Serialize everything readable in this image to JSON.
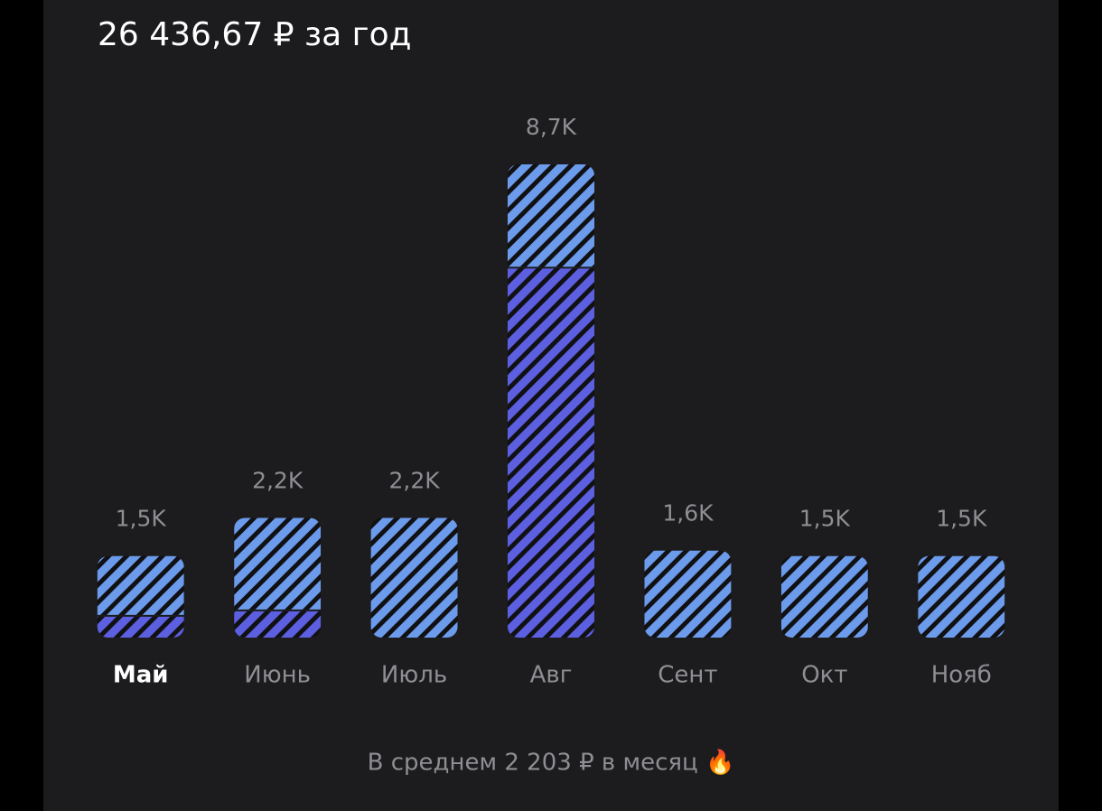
{
  "chart_data": {
    "type": "bar",
    "stacked": true,
    "title": "26 436,67 ₽ за год",
    "footer": "В среднем 2 203 ₽ в месяц 🔥",
    "categories": [
      "Май",
      "Июнь",
      "Июль",
      "Авг",
      "Сент",
      "Окт",
      "Нояб"
    ],
    "selected": 0,
    "series": [
      {
        "color": "#5b5fe0",
        "values": [
          400,
          500,
          0,
          6800,
          0,
          0,
          0
        ]
      },
      {
        "color": "#6b9bea",
        "values": [
          1100,
          1700,
          2200,
          1900,
          1600,
          1500,
          1500
        ]
      }
    ],
    "totals": [
      1500,
      2200,
      2200,
      8700,
      1600,
      1500,
      1500
    ],
    "value_labels": [
      "1,5K",
      "2,2K",
      "2,2K",
      "8,7K",
      "1,6K",
      "1,5K",
      "1,5K"
    ],
    "ylim": [
      0,
      8700
    ]
  }
}
